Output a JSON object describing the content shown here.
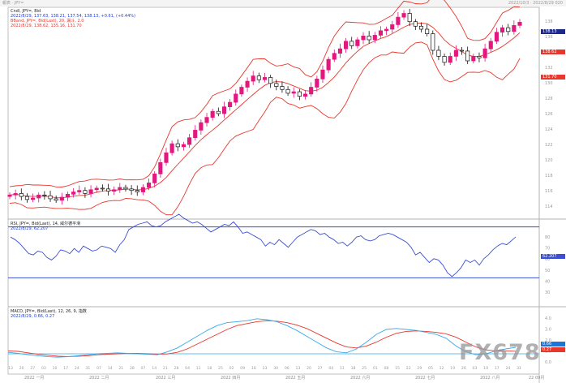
{
  "window": {
    "title": "報表 · JPY=",
    "top_right": "2022/10/3 · 2022/8/29 020"
  },
  "watermark": "FX678",
  "colors": {
    "candle_up": "#e3177d",
    "candle_down": "#111111",
    "bands": "#e8372c",
    "rsi": "#3a4fd1",
    "macd": "#39a9e8",
    "signal": "#e8372c",
    "price_tag": "#1b2a8a"
  },
  "price_panel": {
    "legend": [
      {
        "text": "Cndl, JPY=, Bid",
        "color": "#222222"
      },
      {
        "text": "2022/8/29, 137.63, 138.21, 137.54, 138.13, +0.61, (+0.44%)",
        "color": "#1c3fd9"
      },
      {
        "text": "BBand, JPY=, Bid(Last), 20, 漏斗, 2.0",
        "color": "#e8372c"
      },
      {
        "text": "2022/8/29, 138.62, 135.16, 131.70",
        "color": "#e8372c"
      }
    ],
    "last_price": "138.13",
    "yticks": [
      "138",
      "136",
      "134",
      "132",
      "130",
      "128",
      "126",
      "124",
      "122",
      "120",
      "118",
      "116",
      "114"
    ],
    "band_labels": [
      "138.62",
      "131.70"
    ]
  },
  "rsi_panel": {
    "legend": [
      {
        "text": "RSI, JPY=, Bid(Last), 14, 威尔德平滑",
        "color": "#222222"
      },
      {
        "text": "2022/8/29, 62.207",
        "color": "#1c3fd9"
      }
    ],
    "yticks": [
      "80",
      "70",
      "60",
      "50",
      "40",
      "30"
    ],
    "current_label": "62.207",
    "levels": [
      70,
      30
    ]
  },
  "macd_panel": {
    "legend": [
      {
        "text": "MACD, JPY=, Bid(Last), 12, 26, 9, 指数",
        "color": "#222222"
      },
      {
        "text": "2022/8/29, 0.66, 0.27",
        "color": "#1c3fd9"
      }
    ],
    "yticks": [
      "4.0",
      "3.0",
      "2.0",
      "1.0",
      "0.0"
    ],
    "macd_label": "0.66",
    "signal_label": "0.27"
  },
  "x_axis": {
    "day_ticks": [
      "13",
      "20",
      "27",
      "03",
      "10",
      "17",
      "24",
      "31",
      "07",
      "14",
      "21",
      "28",
      "07",
      "14",
      "21",
      "28",
      "04",
      "11",
      "18",
      "25",
      "02",
      "09",
      "16",
      "23",
      "30",
      "06",
      "13",
      "20",
      "27",
      "04",
      "11",
      "18",
      "25",
      "01",
      "08",
      "15",
      "22",
      "29",
      "05",
      "12",
      "19",
      "26",
      "03",
      "10",
      "17",
      "24",
      "31"
    ],
    "month_labels": [
      "2022 一月",
      "2022 二月",
      "2022 三月",
      "2022 四月",
      "2022 五月",
      "2022 六月",
      "2022 七月",
      "2022 八月",
      "22 09月"
    ]
  },
  "chart_data": [
    {
      "type": "candlestick",
      "title": "Cndl, JPY=, Bid",
      "x": "weekly bars, 2022-01 to 2022-08-29",
      "close_path": [
        115.2,
        115.4,
        115.0,
        114.6,
        114.8,
        115.2,
        115.1,
        114.7,
        114.5,
        114.9,
        115.3,
        115.6,
        115.8,
        115.4,
        115.9,
        116.1,
        116.0,
        115.7,
        115.9,
        116.2,
        116.0,
        115.8,
        115.6,
        116.2,
        116.8,
        118.0,
        119.5,
        120.8,
        122.0,
        121.6,
        121.9,
        122.8,
        123.8,
        124.8,
        125.5,
        126.3,
        126.0,
        126.9,
        127.5,
        128.6,
        129.5,
        130.3,
        131.0,
        130.5,
        130.8,
        130.0,
        129.6,
        129.2,
        128.7,
        128.9,
        128.3,
        128.6,
        129.5,
        130.6,
        131.8,
        133.2,
        134.0,
        134.6,
        135.6,
        135.0,
        135.8,
        136.3,
        135.8,
        136.4,
        137.0,
        137.2,
        137.8,
        138.8,
        139.3,
        138.2,
        137.6,
        137.2,
        136.6,
        134.4,
        133.6,
        132.8,
        133.6,
        134.4,
        134.3,
        133.0,
        133.6,
        133.4,
        134.6,
        135.6,
        136.8,
        137.4,
        136.9,
        137.7,
        138.13
      ],
      "bollinger": {
        "period": 20,
        "stddev": 2.0,
        "last": {
          "upper": 138.62,
          "mid": 135.16,
          "lower": 131.7
        }
      },
      "last_bar": {
        "date": "2022/8/29",
        "open": 137.63,
        "high": 138.21,
        "low": 137.54,
        "close": 138.13,
        "change": 0.61,
        "change_pct": 0.44
      }
    },
    {
      "type": "line",
      "title": "RSI, JPY=, Bid(Last), 14, 威尔德平滑",
      "period": 14,
      "levels": [
        70,
        30
      ],
      "values": [
        62,
        60,
        57,
        53,
        49,
        48,
        51,
        50,
        46,
        44,
        47,
        52,
        51,
        49,
        53,
        50,
        55,
        53,
        51,
        52,
        55,
        54,
        53,
        50,
        56,
        60,
        68,
        70,
        72,
        73,
        74,
        71,
        70,
        71,
        74,
        76,
        78,
        80,
        77,
        75,
        73,
        74,
        72,
        69,
        66,
        68,
        70,
        72,
        71,
        74,
        70,
        65,
        66,
        64,
        62,
        60,
        55,
        58,
        56,
        60,
        57,
        54,
        58,
        62,
        64,
        66,
        68,
        67,
        64,
        65,
        62,
        60,
        57,
        58,
        55,
        58,
        62,
        63,
        60,
        59,
        60,
        63,
        64,
        65,
        64,
        62,
        60,
        58,
        54,
        48,
        50,
        46,
        42,
        45,
        44,
        40,
        34,
        31,
        34,
        38,
        44,
        42,
        44,
        40,
        45,
        48,
        52,
        55,
        57,
        56,
        59,
        62.2
      ]
    },
    {
      "type": "line",
      "title": "MACD, JPY=, Bid(Last), 12, 26, 9, 指数",
      "params": [
        12,
        26,
        9
      ],
      "series": [
        {
          "name": "MACD",
          "values": [
            0.15,
            0.05,
            -0.1,
            -0.2,
            -0.3,
            -0.35,
            -0.3,
            -0.2,
            -0.1,
            0.0,
            0.05,
            0.1,
            0.05,
            0.0,
            -0.05,
            -0.1,
            0.2,
            0.6,
            1.2,
            1.8,
            2.4,
            2.9,
            3.2,
            3.3,
            3.4,
            3.6,
            3.5,
            3.3,
            2.9,
            2.4,
            1.8,
            1.2,
            0.6,
            0.2,
            0.1,
            0.5,
            1.2,
            2.0,
            2.5,
            2.6,
            2.5,
            2.4,
            2.2,
            2.0,
            1.6,
            0.8,
            0.2,
            -0.1,
            0.0,
            0.3,
            0.5,
            0.66
          ]
        },
        {
          "name": "Signal",
          "values": [
            0.3,
            0.25,
            0.1,
            -0.05,
            -0.15,
            -0.25,
            -0.28,
            -0.25,
            -0.2,
            -0.1,
            -0.05,
            0.0,
            0.05,
            0.05,
            0.0,
            -0.05,
            -0.02,
            0.15,
            0.5,
            1.0,
            1.5,
            2.0,
            2.5,
            2.9,
            3.1,
            3.3,
            3.4,
            3.35,
            3.2,
            2.95,
            2.6,
            2.1,
            1.6,
            1.1,
            0.7,
            0.6,
            0.8,
            1.2,
            1.7,
            2.1,
            2.3,
            2.35,
            2.3,
            2.2,
            2.05,
            1.7,
            1.2,
            0.7,
            0.4,
            0.3,
            0.28,
            0.27
          ]
        }
      ],
      "last": {
        "macd": 0.66,
        "signal": 0.27
      }
    }
  ]
}
